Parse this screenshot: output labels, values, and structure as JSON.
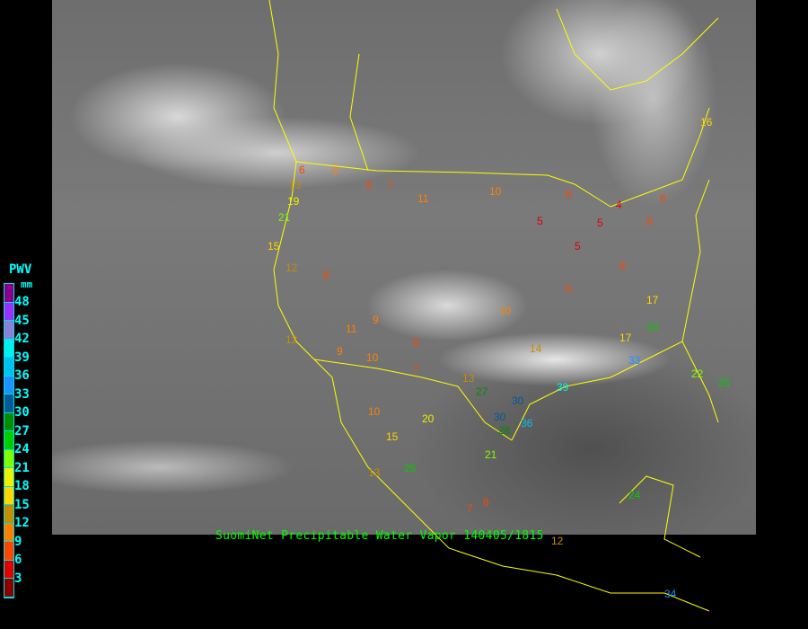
{
  "caption": "SuomiNet Precipitable Water Vapor 140405/1815",
  "legend": {
    "title": "PWV",
    "unit": "mm",
    "labels": [
      "48",
      "45",
      "42",
      "39",
      "36",
      "33",
      "30",
      "27",
      "24",
      "21",
      "18",
      "15",
      "12",
      "9",
      "6",
      "3"
    ],
    "colors": [
      "#8b008b",
      "#9b30ff",
      "#8c7fd8",
      "#00f0f0",
      "#00c0f0",
      "#1e90ff",
      "#005a96",
      "#008c00",
      "#00cc00",
      "#7fff00",
      "#f0f000",
      "#ffd700",
      "#c88c00",
      "#ff8000",
      "#ff4500",
      "#e00000",
      "#8b0000"
    ]
  },
  "boundary_color": "#ffff00",
  "stations": [
    "6",
    "9",
    "13",
    "19",
    "21",
    "15",
    "12",
    "8",
    "6",
    "7",
    "11",
    "10",
    "5",
    "6",
    "5",
    "4",
    "5",
    "6",
    "8",
    "6",
    "9",
    "10",
    "12",
    "9",
    "11",
    "10",
    "8",
    "7",
    "6",
    "13",
    "17",
    "14",
    "24",
    "30",
    "36",
    "39",
    "33",
    "22",
    "25",
    "27",
    "28",
    "30",
    "21",
    "15",
    "10",
    "13",
    "20",
    "7",
    "8",
    "25",
    "24",
    "34",
    "12",
    "17",
    "16"
  ]
}
